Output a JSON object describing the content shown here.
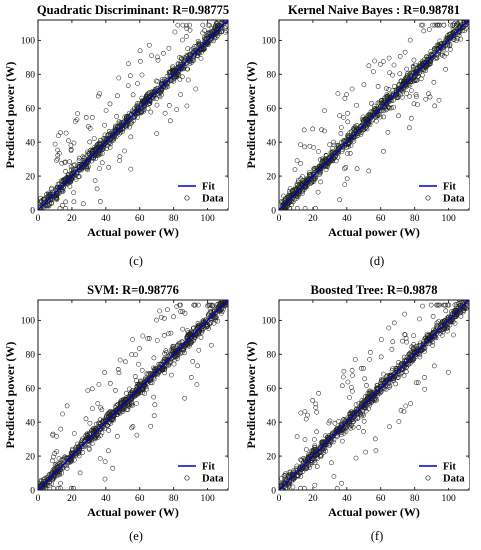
{
  "chart_data": [
    {
      "type": "scatter",
      "title": "Quadratic Discriminant: R=0.98775",
      "xlabel": "Actual power (W)",
      "ylabel": "Predicted power (W)",
      "xlim": [
        0,
        112
      ],
      "ylim": [
        0,
        112
      ],
      "xticks": [
        0,
        20,
        40,
        60,
        80,
        100
      ],
      "yticks": [
        0,
        20,
        40,
        60,
        80,
        100
      ],
      "caption": "(c)",
      "fit": {
        "name": "Fit",
        "x": [
          0,
          112
        ],
        "y": [
          0,
          112
        ],
        "color": "#0000cc"
      },
      "data_series_name": "Data",
      "legend": "bottom-right",
      "seed": 11
    },
    {
      "type": "scatter",
      "title": "Kernel Naive Bayes : R=0.98781",
      "xlabel": "Actual power (W)",
      "ylabel": "Predicted power (W)",
      "xlim": [
        0,
        112
      ],
      "ylim": [
        0,
        112
      ],
      "xticks": [
        0,
        20,
        40,
        60,
        80,
        100
      ],
      "yticks": [
        0,
        20,
        40,
        60,
        80,
        100
      ],
      "caption": "(d)",
      "fit": {
        "name": "Fit",
        "x": [
          0,
          112
        ],
        "y": [
          0,
          112
        ],
        "color": "#0000cc"
      },
      "data_series_name": "Data",
      "legend": "bottom-right",
      "seed": 23
    },
    {
      "type": "scatter",
      "title": "SVM: R=0.98776",
      "xlabel": "Actual power (W)",
      "ylabel": "Predicted power (W)",
      "xlim": [
        0,
        112
      ],
      "ylim": [
        0,
        112
      ],
      "xticks": [
        0,
        20,
        40,
        60,
        80,
        100
      ],
      "yticks": [
        0,
        20,
        40,
        60,
        80,
        100
      ],
      "caption": "(e)",
      "fit": {
        "name": "Fit",
        "x": [
          0,
          112
        ],
        "y": [
          0,
          112
        ],
        "color": "#0000cc"
      },
      "data_series_name": "Data",
      "legend": "bottom-right",
      "seed": 37
    },
    {
      "type": "scatter",
      "title": "Boosted Tree: R=0.9878",
      "xlabel": "Actual power (W)",
      "ylabel": "Predicted power (W)",
      "xlim": [
        0,
        112
      ],
      "ylim": [
        0,
        112
      ],
      "xticks": [
        0,
        20,
        40,
        60,
        80,
        100
      ],
      "yticks": [
        0,
        20,
        40,
        60,
        80,
        100
      ],
      "caption": "(f)",
      "fit": {
        "name": "Fit",
        "x": [
          0,
          112
        ],
        "y": [
          0,
          112
        ],
        "color": "#0000cc"
      },
      "data_series_name": "Data",
      "legend": "bottom-right",
      "seed": 53
    }
  ]
}
